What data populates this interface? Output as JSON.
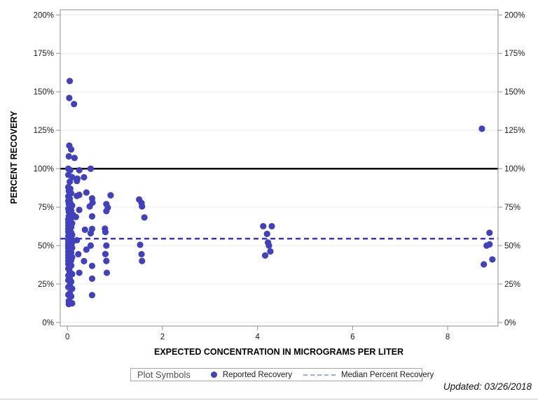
{
  "chart_data": {
    "type": "scatter",
    "title": "",
    "xlabel": "EXPECTED CONCENTRATION IN MICROGRAMS PER LITER",
    "ylabel": "PERCENT RECOVERY",
    "xlim": [
      -0.15,
      9.06
    ],
    "ylim": [
      -2.3,
      203.3
    ],
    "grid": "horizontal",
    "grid_color": "#e8e8e8",
    "border_color": "#8f8f8f",
    "x_ticks": [
      {
        "v": 0,
        "label": "0"
      },
      {
        "v": 2,
        "label": "2"
      },
      {
        "v": 4,
        "label": "4"
      },
      {
        "v": 6,
        "label": "6"
      },
      {
        "v": 8,
        "label": "8"
      }
    ],
    "y_ticks": [
      {
        "v": 0,
        "label": "0%"
      },
      {
        "v": 25,
        "label": "25%"
      },
      {
        "v": 50,
        "label": "50%"
      },
      {
        "v": 75,
        "label": "75%"
      },
      {
        "v": 100,
        "label": "100%"
      },
      {
        "v": 125,
        "label": "125%"
      },
      {
        "v": 150,
        "label": "150%"
      },
      {
        "v": 175,
        "label": "175%"
      },
      {
        "v": 200,
        "label": "200%"
      }
    ],
    "marker": {
      "shape": "circle",
      "color": "#4141bd",
      "radius": 4.6
    },
    "reference_lines": [
      {
        "name": "100-percent-recovery-line",
        "value": 100,
        "style": "solid",
        "color": "#000000",
        "width": 2.5
      },
      {
        "name": "median-percent-recovery-line",
        "value": 54.5,
        "style": "dashed",
        "color": "#3434c3",
        "width": 2.5
      }
    ],
    "series": [
      {
        "name": "Reported Recovery",
        "points": [
          [
            0.05,
            157
          ],
          [
            0.04,
            146
          ],
          [
            0.14,
            142
          ],
          [
            0.04,
            115
          ],
          [
            0.08,
            112.5
          ],
          [
            0.03,
            108
          ],
          [
            0.15,
            107
          ],
          [
            0.02,
            100
          ],
          [
            0.25,
            99
          ],
          [
            0.49,
            100
          ],
          [
            0.06,
            99
          ],
          [
            0.02,
            96
          ],
          [
            0.1,
            94.5
          ],
          [
            0.21,
            93.5
          ],
          [
            0.35,
            94.4
          ],
          [
            0.2,
            92
          ],
          [
            0.05,
            91.5
          ],
          [
            0.02,
            88
          ],
          [
            0.06,
            87
          ],
          [
            0.03,
            85.5
          ],
          [
            0.08,
            84
          ],
          [
            0.4,
            84.5
          ],
          [
            0.25,
            83
          ],
          [
            0.91,
            82.7
          ],
          [
            0.02,
            82
          ],
          [
            0.2,
            82.3
          ],
          [
            0.05,
            80.5
          ],
          [
            0.52,
            80.7
          ],
          [
            0.02,
            79
          ],
          [
            0.06,
            78
          ],
          [
            0.53,
            78
          ],
          [
            0.03,
            77
          ],
          [
            0.82,
            77
          ],
          [
            0.1,
            76
          ],
          [
            0.05,
            75.5
          ],
          [
            0.47,
            75.5
          ],
          [
            0.85,
            74.7
          ],
          [
            0.02,
            74
          ],
          [
            0.08,
            73
          ],
          [
            0.25,
            73.2
          ],
          [
            0.03,
            72
          ],
          [
            0.82,
            72.4
          ],
          [
            0.05,
            71
          ],
          [
            0.12,
            70
          ],
          [
            0.03,
            69
          ],
          [
            0.52,
            69
          ],
          [
            0.08,
            68
          ],
          [
            0.18,
            68.6
          ],
          [
            0.02,
            67
          ],
          [
            0.05,
            66
          ],
          [
            0.02,
            65
          ],
          [
            0.1,
            64.5
          ],
          [
            0.05,
            63.5
          ],
          [
            0.02,
            63
          ],
          [
            0.08,
            62
          ],
          [
            0.02,
            61
          ],
          [
            0.79,
            61
          ],
          [
            0.52,
            60.8
          ],
          [
            0.37,
            60.3
          ],
          [
            0.05,
            60
          ],
          [
            0.02,
            59
          ],
          [
            0.08,
            58.5
          ],
          [
            0.49,
            58
          ],
          [
            0.8,
            58.8
          ],
          [
            0.03,
            57.5
          ],
          [
            0.1,
            57
          ],
          [
            0.05,
            56.5
          ],
          [
            0.02,
            56
          ],
          [
            0.05,
            55
          ],
          [
            0.08,
            54.5
          ],
          [
            0.02,
            54
          ],
          [
            0.2,
            53.5
          ],
          [
            0.05,
            53
          ],
          [
            0.02,
            52.5
          ],
          [
            0.1,
            52
          ],
          [
            0.05,
            51.5
          ],
          [
            0.02,
            51
          ],
          [
            0.08,
            50.5
          ],
          [
            0.05,
            50
          ],
          [
            0.49,
            50
          ],
          [
            0.82,
            50
          ],
          [
            0.02,
            49.5
          ],
          [
            0.06,
            49
          ],
          [
            0.1,
            48.5
          ],
          [
            0.02,
            48
          ],
          [
            0.05,
            47
          ],
          [
            0.4,
            47.4
          ],
          [
            0.02,
            46
          ],
          [
            0.08,
            45.5
          ],
          [
            0.23,
            44.4
          ],
          [
            0.05,
            45
          ],
          [
            0.02,
            44
          ],
          [
            0.8,
            44.5
          ],
          [
            0.05,
            43
          ],
          [
            0.1,
            42.5
          ],
          [
            0.02,
            42
          ],
          [
            0.05,
            41
          ],
          [
            0.08,
            40.5
          ],
          [
            0.82,
            40
          ],
          [
            0.02,
            40
          ],
          [
            0.35,
            39.9
          ],
          [
            0.06,
            39
          ],
          [
            0.02,
            38
          ],
          [
            0.08,
            37
          ],
          [
            0.52,
            36.8
          ],
          [
            0.05,
            36
          ],
          [
            0.02,
            35
          ],
          [
            0.05,
            33
          ],
          [
            0.25,
            32.3
          ],
          [
            0.83,
            32.3
          ],
          [
            0.1,
            31.5
          ],
          [
            0.02,
            30.5
          ],
          [
            0.05,
            28.5
          ],
          [
            0.52,
            28.5
          ],
          [
            0.02,
            27.5
          ],
          [
            0.08,
            26.5
          ],
          [
            0.05,
            24
          ],
          [
            0.02,
            23
          ],
          [
            0.1,
            22
          ],
          [
            0.05,
            19
          ],
          [
            0.02,
            18
          ],
          [
            0.08,
            17
          ],
          [
            0.52,
            17.8
          ],
          [
            0.03,
            14
          ],
          [
            0.06,
            13
          ],
          [
            0.1,
            12.5
          ],
          [
            0.03,
            12
          ],
          [
            1.51,
            80
          ],
          [
            1.56,
            77.7
          ],
          [
            1.57,
            75.5
          ],
          [
            1.62,
            68.3
          ],
          [
            1.53,
            50.5
          ],
          [
            1.56,
            44.4
          ],
          [
            1.57,
            40
          ],
          [
            4.12,
            62.6
          ],
          [
            4.3,
            62.6
          ],
          [
            4.2,
            57.6
          ],
          [
            4.22,
            52
          ],
          [
            4.24,
            50
          ],
          [
            4.27,
            46.2
          ],
          [
            4.16,
            43.6
          ],
          [
            8.72,
            126
          ],
          [
            8.88,
            58.3
          ],
          [
            8.82,
            50
          ],
          [
            8.88,
            50.8
          ],
          [
            8.94,
            41
          ],
          [
            8.76,
            37.8
          ]
        ]
      }
    ]
  },
  "legend": {
    "title": "Plot Symbols",
    "entries": [
      {
        "label": "Reported Recovery",
        "swatch": "dot",
        "color": "#4141bd"
      },
      {
        "label": "Median Percent Recovery",
        "swatch": "dashed-line",
        "color": "#a3a9cf"
      }
    ]
  },
  "footer": {
    "updated": "Updated: 03/26/2018"
  }
}
